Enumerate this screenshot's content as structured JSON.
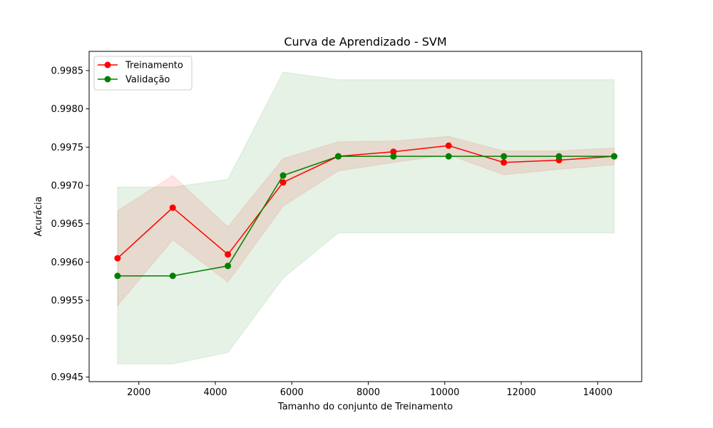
{
  "chart_data": {
    "type": "line",
    "title": "Curva de Aprendizado - SVM",
    "xlabel": "Tamanho do conjunto de Treinamento",
    "ylabel": "Acurácia",
    "xlim": [
      700,
      15150
    ],
    "ylim": [
      0.99444,
      0.99875
    ],
    "x_ticks": [
      2000,
      4000,
      6000,
      8000,
      10000,
      12000,
      14000
    ],
    "x_tick_labels": [
      "2000",
      "4000",
      "6000",
      "8000",
      "10000",
      "12000",
      "14000"
    ],
    "y_ticks": [
      0.9945,
      0.995,
      0.9955,
      0.996,
      0.9965,
      0.997,
      0.9975,
      0.998,
      0.9985
    ],
    "y_tick_labels": [
      "0.9945",
      "0.9950",
      "0.9955",
      "0.9960",
      "0.9965",
      "0.9970",
      "0.9975",
      "0.9980",
      "0.9985"
    ],
    "grid": false,
    "legend_position": "upper-left",
    "x": [
      1443,
      2886,
      4329,
      5772,
      7215,
      8658,
      10101,
      11544,
      12987,
      14430
    ],
    "series": [
      {
        "name": "Treinamento",
        "color": "#ff0000",
        "values": [
          0.99605,
          0.99671,
          0.9961,
          0.99704,
          0.99738,
          0.99744,
          0.99752,
          0.9973,
          0.99733,
          0.99738
        ],
        "band_upper": [
          0.99667,
          0.99713,
          0.99646,
          0.99735,
          0.99757,
          0.99758,
          0.99764,
          0.99745,
          0.99745,
          0.99749
        ],
        "band_lower": [
          0.99543,
          0.99629,
          0.99574,
          0.99673,
          0.99719,
          0.9973,
          0.9974,
          0.99714,
          0.99721,
          0.99727
        ],
        "band_color": "#ff0000",
        "band_opacity": 0.1
      },
      {
        "name": "Validação",
        "color": "#008000",
        "values": [
          0.99582,
          0.99582,
          0.99595,
          0.99713,
          0.99738,
          0.99738,
          0.99738,
          0.99738,
          0.99738,
          0.99738
        ],
        "band_upper": [
          0.99698,
          0.99698,
          0.99708,
          0.99848,
          0.99838,
          0.99838,
          0.99838,
          0.99838,
          0.99838,
          0.99838
        ],
        "band_lower": [
          0.99467,
          0.99467,
          0.99482,
          0.99579,
          0.99638,
          0.99638,
          0.99638,
          0.99638,
          0.99638,
          0.99638
        ],
        "band_color": "#008000",
        "band_opacity": 0.1
      }
    ]
  }
}
